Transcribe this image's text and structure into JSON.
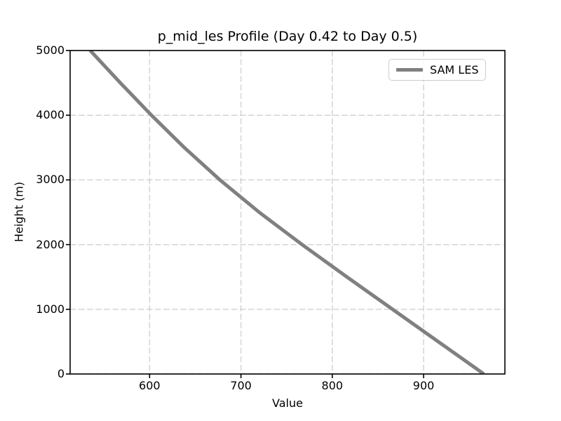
{
  "chart_data": {
    "type": "line",
    "title": "p_mid_les Profile (Day 0.42 to Day 0.5)",
    "xlabel": "Value",
    "ylabel": "Height (m)",
    "xlim": [
      513,
      989
    ],
    "ylim": [
      0,
      5000
    ],
    "xticks": [
      600,
      700,
      800,
      900
    ],
    "yticks": [
      0,
      1000,
      2000,
      3000,
      4000,
      5000
    ],
    "grid": true,
    "grid_style": "dashed",
    "legend_position": "upper right",
    "series": [
      {
        "name": "SAM LES",
        "color": "#808080",
        "line_width": 5,
        "x": [
          966,
          916,
          866,
          816,
          767,
          720,
          677,
          638,
          602,
          568,
          535
        ],
        "y": [
          0,
          500,
          1000,
          1500,
          2000,
          2500,
          3000,
          3500,
          4000,
          4500,
          5000
        ]
      }
    ],
    "colors": {
      "grid": "#d4d4d4",
      "spine": "#000000",
      "tick": "#000000",
      "text": "#000000",
      "legend_border": "#cccccc",
      "background": "#ffffff"
    }
  }
}
